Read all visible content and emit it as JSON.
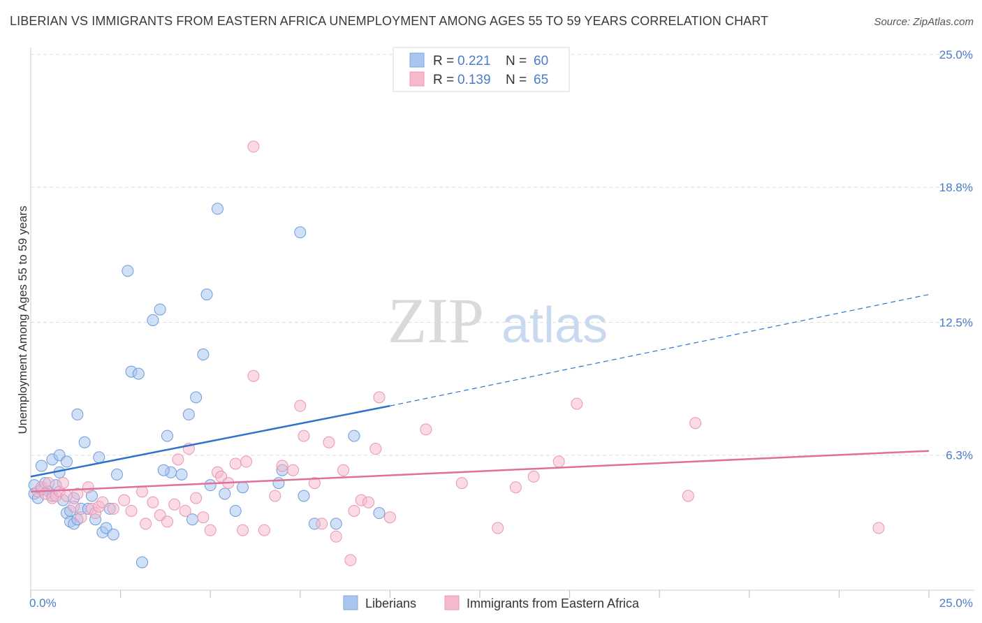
{
  "header": {
    "title": "LIBERIAN VS IMMIGRANTS FROM EASTERN AFRICA UNEMPLOYMENT AMONG AGES 55 TO 59 YEARS CORRELATION CHART",
    "source": "Source: ZipAtlas.com"
  },
  "watermark": {
    "zip": "ZIP",
    "atlas": "atlas"
  },
  "colors": {
    "blue": "#4a7cc9",
    "blue_fill": "#a9c6ee",
    "blue_line": "#2f72cc",
    "pink_fill": "#f5b8cc",
    "pink_line": "#e0709a",
    "grid": "#dddddd"
  },
  "chart_data": {
    "type": "scatter",
    "xlabel": "",
    "ylabel": "Unemployment Among Ages 55 to 59 years",
    "xlim": [
      0,
      25
    ],
    "ylim": [
      0,
      25
    ],
    "x_tick_labels": [
      "0.0%",
      "25.0%"
    ],
    "y_ticks": [
      6.3,
      12.5,
      18.8,
      25.0
    ],
    "y_tick_labels": [
      "6.3%",
      "12.5%",
      "18.8%",
      "25.0%"
    ],
    "grid": true,
    "legend_position": "top-center",
    "stats_legend": [
      {
        "r_label": "R = ",
        "r_value": "0.221",
        "n_label": "N = ",
        "n_value": "60"
      },
      {
        "r_label": "R = ",
        "r_value": "0.139",
        "n_label": "N = ",
        "n_value": "65"
      }
    ],
    "series": [
      {
        "name": "Liberians",
        "color": "#a9c6ee",
        "trend": {
          "x0": 0,
          "y0": 5.3,
          "x1": 10,
          "y1": 8.6,
          "dashed_to_x": 25,
          "dashed_to_y": 13.8
        },
        "points": [
          [
            0.1,
            4.9
          ],
          [
            0.1,
            4.5
          ],
          [
            0.2,
            4.3
          ],
          [
            0.3,
            4.7
          ],
          [
            0.4,
            5.0
          ],
          [
            0.5,
            4.6
          ],
          [
            0.6,
            4.4
          ],
          [
            0.7,
            4.9
          ],
          [
            0.8,
            5.5
          ],
          [
            0.9,
            4.2
          ],
          [
            1.0,
            3.6
          ],
          [
            1.1,
            3.2
          ],
          [
            1.2,
            4.3
          ],
          [
            0.3,
            5.8
          ],
          [
            0.6,
            6.1
          ],
          [
            0.8,
            6.3
          ],
          [
            1.0,
            6.0
          ],
          [
            1.1,
            3.7
          ],
          [
            1.2,
            3.1
          ],
          [
            1.3,
            3.3
          ],
          [
            1.4,
            3.8
          ],
          [
            1.5,
            6.9
          ],
          [
            1.6,
            3.8
          ],
          [
            1.7,
            4.4
          ],
          [
            1.8,
            3.3
          ],
          [
            1.9,
            6.2
          ],
          [
            2.0,
            2.7
          ],
          [
            2.1,
            2.9
          ],
          [
            2.2,
            3.8
          ],
          [
            2.3,
            2.6
          ],
          [
            2.7,
            14.9
          ],
          [
            2.8,
            10.2
          ],
          [
            3.0,
            10.1
          ],
          [
            3.1,
            1.3
          ],
          [
            3.4,
            12.6
          ],
          [
            3.8,
            7.2
          ],
          [
            3.9,
            5.5
          ],
          [
            3.6,
            13.1
          ],
          [
            3.7,
            5.6
          ],
          [
            4.2,
            5.4
          ],
          [
            4.4,
            8.2
          ],
          [
            4.5,
            3.3
          ],
          [
            4.6,
            9.0
          ],
          [
            4.8,
            11.0
          ],
          [
            4.9,
            13.8
          ],
          [
            5.0,
            4.9
          ],
          [
            5.2,
            17.8
          ],
          [
            5.4,
            4.5
          ],
          [
            5.7,
            3.7
          ],
          [
            5.9,
            4.8
          ],
          [
            6.9,
            5.0
          ],
          [
            7.0,
            5.6
          ],
          [
            7.6,
            4.4
          ],
          [
            7.9,
            3.1
          ],
          [
            8.5,
            3.1
          ],
          [
            9.0,
            7.2
          ],
          [
            9.7,
            3.6
          ],
          [
            7.5,
            16.7
          ],
          [
            1.3,
            8.2
          ],
          [
            2.4,
            5.4
          ]
        ]
      },
      {
        "name": "Immigrants from Eastern Africa",
        "color": "#f5b8cc",
        "trend": {
          "x0": 0,
          "y0": 4.6,
          "x1": 25,
          "y1": 6.5
        },
        "points": [
          [
            0.2,
            4.6
          ],
          [
            0.3,
            4.8
          ],
          [
            0.4,
            4.5
          ],
          [
            0.5,
            5.0
          ],
          [
            0.6,
            4.3
          ],
          [
            0.7,
            4.4
          ],
          [
            0.8,
            4.6
          ],
          [
            0.9,
            5.0
          ],
          [
            1.0,
            4.4
          ],
          [
            1.2,
            3.9
          ],
          [
            1.3,
            4.5
          ],
          [
            1.4,
            3.4
          ],
          [
            1.6,
            4.8
          ],
          [
            1.7,
            3.8
          ],
          [
            1.8,
            3.6
          ],
          [
            1.9,
            3.9
          ],
          [
            2.0,
            4.1
          ],
          [
            2.3,
            3.8
          ],
          [
            2.6,
            4.2
          ],
          [
            2.8,
            3.7
          ],
          [
            3.1,
            4.6
          ],
          [
            3.2,
            3.1
          ],
          [
            3.4,
            4.1
          ],
          [
            3.6,
            3.5
          ],
          [
            3.8,
            3.2
          ],
          [
            4.0,
            4.0
          ],
          [
            4.1,
            6.1
          ],
          [
            4.3,
            3.7
          ],
          [
            4.4,
            6.6
          ],
          [
            4.6,
            4.3
          ],
          [
            4.8,
            3.4
          ],
          [
            5.0,
            2.8
          ],
          [
            5.2,
            5.5
          ],
          [
            5.3,
            5.3
          ],
          [
            5.5,
            5.0
          ],
          [
            5.7,
            5.9
          ],
          [
            5.9,
            2.8
          ],
          [
            6.0,
            6.0
          ],
          [
            6.2,
            10.0
          ],
          [
            6.5,
            2.8
          ],
          [
            6.8,
            4.4
          ],
          [
            7.0,
            5.8
          ],
          [
            7.3,
            5.6
          ],
          [
            7.5,
            8.6
          ],
          [
            7.6,
            7.2
          ],
          [
            7.9,
            5.0
          ],
          [
            8.1,
            3.1
          ],
          [
            8.3,
            6.9
          ],
          [
            8.5,
            2.5
          ],
          [
            8.7,
            5.6
          ],
          [
            8.9,
            1.4
          ],
          [
            9.0,
            3.7
          ],
          [
            9.2,
            4.2
          ],
          [
            9.4,
            4.1
          ],
          [
            9.6,
            6.6
          ],
          [
            10.0,
            3.4
          ],
          [
            11.0,
            7.5
          ],
          [
            12.0,
            5.0
          ],
          [
            13.0,
            2.9
          ],
          [
            13.5,
            4.8
          ],
          [
            14.0,
            5.3
          ],
          [
            14.7,
            6.0
          ],
          [
            15.2,
            8.7
          ],
          [
            18.3,
            4.4
          ],
          [
            23.6,
            2.9
          ]
        ]
      }
    ]
  },
  "extra_pink": [
    [
      6.2,
      20.7
    ],
    [
      9.7,
      9.0
    ],
    [
      18.5,
      7.8
    ]
  ],
  "legend": {
    "series_labels": [
      "Liberians",
      "Immigrants from Eastern Africa"
    ]
  }
}
